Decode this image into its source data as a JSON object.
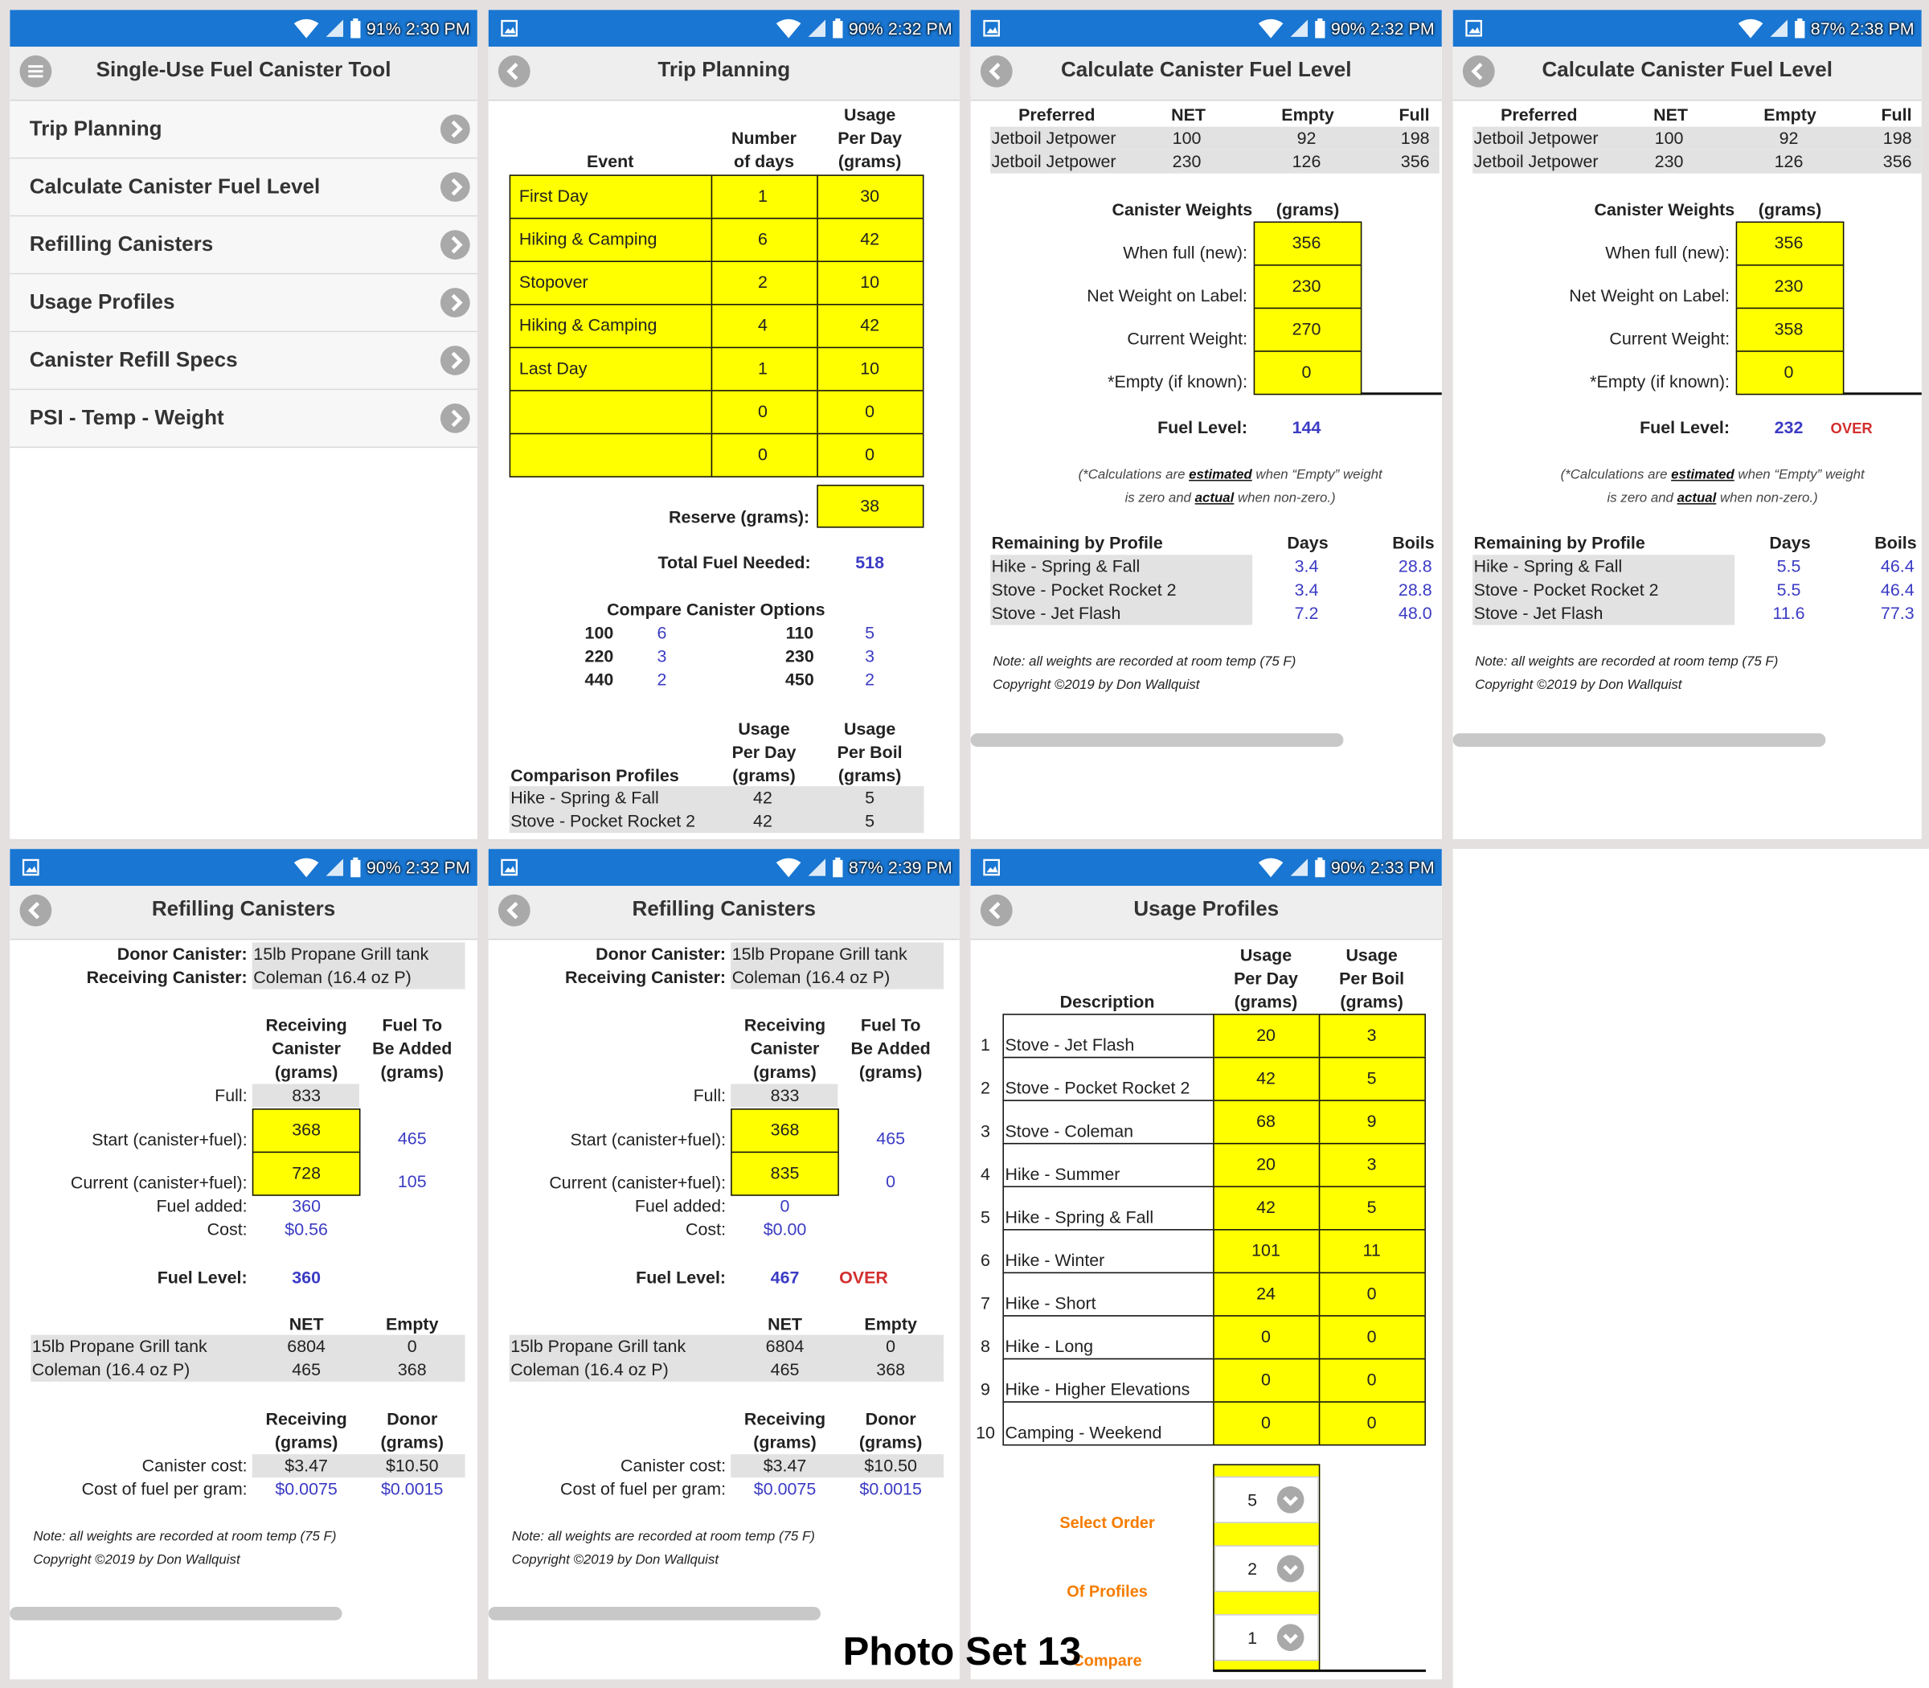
{
  "screens": [
    {
      "battery": "91%",
      "time": "2:30 PM",
      "title": "Single-Use Fuel Canister Tool",
      "menu": [
        "Trip Planning",
        "Calculate Canister Fuel Level",
        "Refilling Canisters",
        "Usage Profiles",
        "Canister Refill Specs",
        "PSI - Temp - Weight"
      ]
    },
    {
      "battery": "90%",
      "time": "2:32 PM",
      "title": "Trip Planning",
      "event_headers": [
        [
          "Event"
        ],
        [
          "Number",
          "of days"
        ],
        [
          "Usage",
          "Per Day",
          "(grams)"
        ]
      ],
      "events": [
        [
          "First Day",
          "1",
          "30"
        ],
        [
          "Hiking & Camping",
          "6",
          "42"
        ],
        [
          "Stopover",
          "2",
          "10"
        ],
        [
          "Hiking & Camping",
          "4",
          "42"
        ],
        [
          "Last Day",
          "1",
          "10"
        ],
        [
          null,
          "0",
          "0"
        ],
        [
          null,
          "0",
          "0"
        ]
      ],
      "reserve_label": "Reserve (grams):",
      "reserve": "38",
      "total_label": "Total Fuel Needed:",
      "total": "518",
      "compare_title": "Compare Canister Options",
      "compare": [
        [
          "100",
          "6",
          "110",
          "5"
        ],
        [
          "220",
          "3",
          "230",
          "3"
        ],
        [
          "440",
          "2",
          "450",
          "2"
        ]
      ],
      "profile_headers": [
        [
          "Comparison Profiles"
        ],
        [
          "Usage",
          "Per Day",
          "(grams)"
        ],
        [
          "Usage",
          "Per Boil",
          "(grams)"
        ]
      ],
      "profiles": [
        [
          "Hike - Spring & Fall",
          "42",
          "5"
        ],
        [
          "Stove - Pocket Rocket 2",
          "42",
          "5"
        ]
      ]
    },
    {
      "battery": "90%",
      "time": "2:32 PM",
      "title": "Calculate Canister Fuel Level",
      "pref_headers": [
        "Preferred",
        "NET",
        "Empty",
        "Full"
      ],
      "preferred": [
        [
          "Jetboil Jetpower",
          "100",
          "92",
          "198"
        ],
        [
          "Jetboil Jetpower",
          "230",
          "126",
          "356"
        ]
      ],
      "weights_headers": [
        "Canister Weights",
        "(grams)"
      ],
      "weights": [
        [
          "When full (new):",
          "356"
        ],
        [
          "Net Weight on Label:",
          "230"
        ],
        [
          "Current Weight:",
          "270"
        ],
        [
          "*Empty (if known):",
          "0"
        ]
      ],
      "fuel_label": "Fuel Level:",
      "fuel": "144",
      "calc_note": [
        [
          "(*Calculations are ",
          "estimated",
          " when “Empty” weight"
        ],
        [
          "is zero and ",
          "actual",
          " when non-zero.)"
        ]
      ],
      "remaining_headers": [
        "Remaining by Profile",
        "Days",
        "Boils"
      ],
      "remaining": [
        [
          "Hike - Spring & Fall",
          "3.4",
          "28.8"
        ],
        [
          "Stove - Pocket Rocket 2",
          "3.4",
          "28.8"
        ],
        [
          "Stove - Jet Flash",
          "7.2",
          "48.0"
        ]
      ],
      "notes": [
        "Note: all weights are recorded at room temp (75 F)",
        "Copyright ©2019 by Don Wallquist"
      ]
    },
    {
      "battery": "87%",
      "time": "2:38 PM",
      "title": "Calculate Canister Fuel Level",
      "pref_headers": [
        "Preferred",
        "NET",
        "Empty",
        "Full"
      ],
      "preferred": [
        [
          "Jetboil Jetpower",
          "100",
          "92",
          "198"
        ],
        [
          "Jetboil Jetpower",
          "230",
          "126",
          "356"
        ]
      ],
      "weights_headers": [
        "Canister Weights",
        "(grams)"
      ],
      "weights": [
        [
          "When full (new):",
          "356"
        ],
        [
          "Net Weight on Label:",
          "230"
        ],
        [
          "Current Weight:",
          "358"
        ],
        [
          "*Empty (if known):",
          "0"
        ]
      ],
      "fuel_label": "Fuel Level:",
      "fuel": "232",
      "status": "OVER",
      "calc_note": [
        [
          "(*Calculations are ",
          "estimated",
          " when “Empty” weight"
        ],
        [
          "is zero and ",
          "actual",
          " when non-zero.)"
        ]
      ],
      "remaining_headers": [
        "Remaining by Profile",
        "Days",
        "Boils"
      ],
      "remaining": [
        [
          "Hike - Spring & Fall",
          "5.5",
          "46.4"
        ],
        [
          "Stove - Pocket Rocket 2",
          "5.5",
          "46.4"
        ],
        [
          "Stove - Jet Flash",
          "11.6",
          "77.3"
        ]
      ],
      "notes": [
        "Note: all weights are recorded at room temp (75 F)",
        "Copyright ©2019 by Don Wallquist"
      ]
    },
    {
      "battery": "90%",
      "time": "2:32 PM",
      "title": "Refilling Canisters",
      "canisters": [
        [
          "Donor Canister:",
          "15lb Propane Grill tank"
        ],
        [
          "Receiving Canister:",
          "Coleman (16.4 oz P)"
        ]
      ],
      "fill_headers": [
        [
          "Receiving",
          "Canister",
          "(grams)"
        ],
        [
          "Fuel To",
          "Be Added",
          "(grams)"
        ]
      ],
      "full": [
        "Full:",
        "833"
      ],
      "fill": [
        [
          "Start (canister+fuel):",
          "368",
          "465"
        ],
        [
          "Current (canister+fuel):",
          "728",
          "105"
        ]
      ],
      "added": [
        [
          "Fuel added:",
          "360"
        ],
        [
          "Cost:",
          "$0.56"
        ]
      ],
      "fuel_label": "Fuel Level:",
      "fuel": "360",
      "spec_headers": [
        "NET",
        "Empty"
      ],
      "specs": [
        [
          "15lb Propane Grill tank",
          "6804",
          "0"
        ],
        [
          "Coleman (16.4 oz P)",
          "465",
          "368"
        ]
      ],
      "cost_headers": [
        [
          "Receiving",
          "(grams)"
        ],
        [
          "Donor",
          "(grams)"
        ]
      ],
      "costs": [
        [
          "Canister cost:",
          "$3.47",
          "$10.50"
        ],
        [
          "Cost of fuel per gram:",
          "$0.0075",
          "$0.0015"
        ]
      ],
      "notes": [
        "Note: all weights are recorded at room temp (75 F)",
        "Copyright ©2019 by Don Wallquist"
      ]
    },
    {
      "battery": "87%",
      "time": "2:39 PM",
      "title": "Refilling Canisters",
      "canisters": [
        [
          "Donor Canister:",
          "15lb Propane Grill tank"
        ],
        [
          "Receiving Canister:",
          "Coleman (16.4 oz P)"
        ]
      ],
      "fill_headers": [
        [
          "Receiving",
          "Canister",
          "(grams)"
        ],
        [
          "Fuel To",
          "Be Added",
          "(grams)"
        ]
      ],
      "full": [
        "Full:",
        "833"
      ],
      "fill": [
        [
          "Start (canister+fuel):",
          "368",
          "465"
        ],
        [
          "Current (canister+fuel):",
          "835",
          "0"
        ]
      ],
      "added": [
        [
          "Fuel added:",
          "0"
        ],
        [
          "Cost:",
          "$0.00"
        ]
      ],
      "fuel_label": "Fuel Level:",
      "fuel": "467",
      "status": "OVER",
      "spec_headers": [
        "NET",
        "Empty"
      ],
      "specs": [
        [
          "15lb Propane Grill tank",
          "6804",
          "0"
        ],
        [
          "Coleman (16.4 oz P)",
          "465",
          "368"
        ]
      ],
      "cost_headers": [
        [
          "Receiving",
          "(grams)"
        ],
        [
          "Donor",
          "(grams)"
        ]
      ],
      "costs": [
        [
          "Canister cost:",
          "$3.47",
          "$10.50"
        ],
        [
          "Cost of fuel per gram:",
          "$0.0075",
          "$0.0015"
        ]
      ],
      "notes": [
        "Note: all weights are recorded at room temp (75 F)",
        "Copyright ©2019 by Don Wallquist"
      ]
    },
    {
      "battery": "90%",
      "time": "2:33 PM",
      "title": "Usage Profiles",
      "headers": [
        [
          "Description"
        ],
        [
          "Usage",
          "Per Day",
          "(grams)"
        ],
        [
          "Usage",
          "Per Boil",
          "(grams)"
        ]
      ],
      "rows": [
        [
          "1",
          "Stove - Jet Flash",
          "20",
          "3"
        ],
        [
          "2",
          "Stove - Pocket Rocket 2",
          "42",
          "5"
        ],
        [
          "3",
          "Stove - Coleman",
          "68",
          "9"
        ],
        [
          "4",
          "Hike - Summer",
          "20",
          "3"
        ],
        [
          "5",
          "Hike - Spring & Fall",
          "42",
          "5"
        ],
        [
          "6",
          "Hike - Winter",
          "101",
          "11"
        ],
        [
          "7",
          "Hike - Short",
          "24",
          "0"
        ],
        [
          "8",
          "Hike - Long",
          "0",
          "0"
        ],
        [
          "9",
          "Hike - Higher Elevations",
          "0",
          "0"
        ],
        [
          "10",
          "Camping - Weekend",
          "0",
          "0"
        ]
      ],
      "selectors": [
        [
          "Select Order",
          "5"
        ],
        [
          "Of Profiles",
          "2"
        ],
        [
          "Compare",
          "1"
        ]
      ]
    }
  ],
  "caption": "Photo Set 13"
}
